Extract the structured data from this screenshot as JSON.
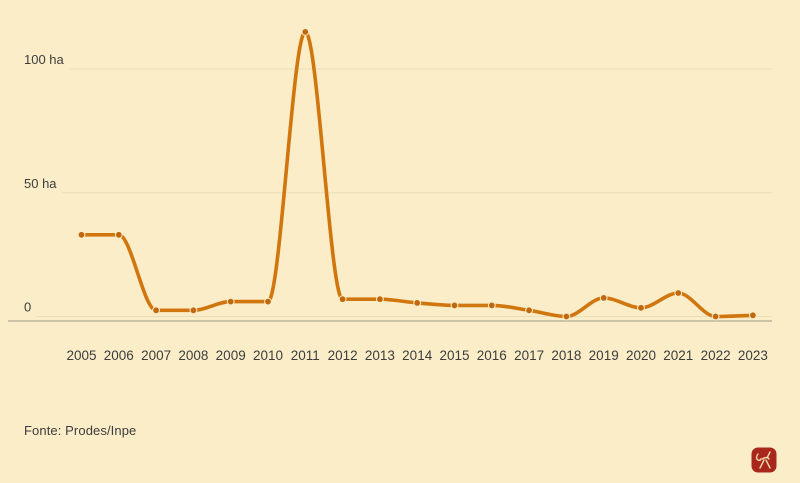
{
  "chart_data": {
    "type": "line",
    "title": "",
    "xlabel": "",
    "ylabel": "",
    "unit": "ha",
    "x": [
      "2005",
      "2006",
      "2007",
      "2008",
      "2009",
      "2010",
      "2011",
      "2012",
      "2013",
      "2014",
      "2015",
      "2016",
      "2017",
      "2018",
      "2019",
      "2020",
      "2021",
      "2022",
      "2023"
    ],
    "values": [
      33,
      33,
      2.5,
      2.5,
      6,
      6,
      115,
      7,
      7,
      5.5,
      4.5,
      4.5,
      2.5,
      0,
      7.5,
      3.5,
      9.5,
      0,
      0.5
    ],
    "y_ticks": [
      {
        "label": "100 ha",
        "value": 100
      },
      {
        "label": "50 ha",
        "value": 50
      },
      {
        "label": "0",
        "value": 0
      }
    ],
    "ylim": [
      0,
      118
    ],
    "grid": "horizontal-only",
    "legend": "none"
  },
  "footer": {
    "source": "Fonte: Prodes/Inpe"
  },
  "icons": {
    "logo": "red-seal-stamp-icon"
  },
  "colors": {
    "background": "#faedc8",
    "line": "#d1760f",
    "marker": "#c0680e",
    "grid": "#eadeb9",
    "axis_line": "#bdb59c",
    "text": "#3d3d3d",
    "logo_red": "#a8261b",
    "logo_marks": "#f0d9a8"
  }
}
